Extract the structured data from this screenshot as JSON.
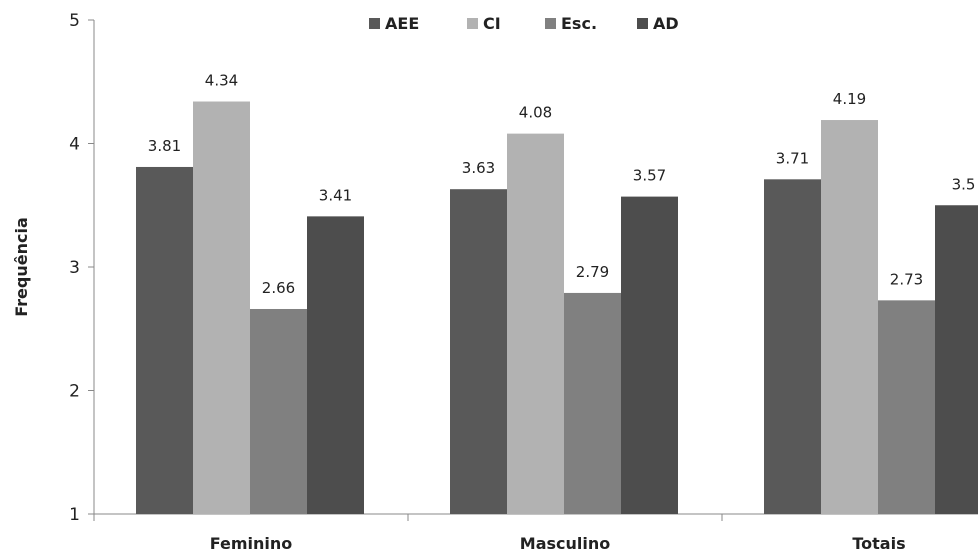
{
  "chart_data": {
    "type": "bar",
    "title": "",
    "xlabel": "",
    "ylabel": "Frequência",
    "ylim": [
      1,
      5
    ],
    "yticks": [
      1,
      2,
      3,
      4,
      5
    ],
    "grid": false,
    "legend_position": "top",
    "categories": [
      "Feminino",
      "Masculino",
      "Totais"
    ],
    "series": [
      {
        "name": "AEE",
        "color": "#595959",
        "values": [
          3.81,
          3.63,
          3.71
        ],
        "labels": [
          "3.81",
          "3.63",
          "3.71"
        ]
      },
      {
        "name": "CI",
        "color": "#b2b2b2",
        "values": [
          4.34,
          4.08,
          4.19
        ],
        "labels": [
          "4.34",
          "4.08",
          "4.19"
        ]
      },
      {
        "name": "Esc.",
        "color": "#808080",
        "values": [
          2.66,
          2.79,
          2.73
        ],
        "labels": [
          "2.66",
          "2.79",
          "2.73"
        ]
      },
      {
        "name": "AD",
        "color": "#4d4d4d",
        "values": [
          3.41,
          3.57,
          3.5
        ],
        "labels": [
          "3.41",
          "3.57",
          "3.5"
        ]
      }
    ]
  }
}
